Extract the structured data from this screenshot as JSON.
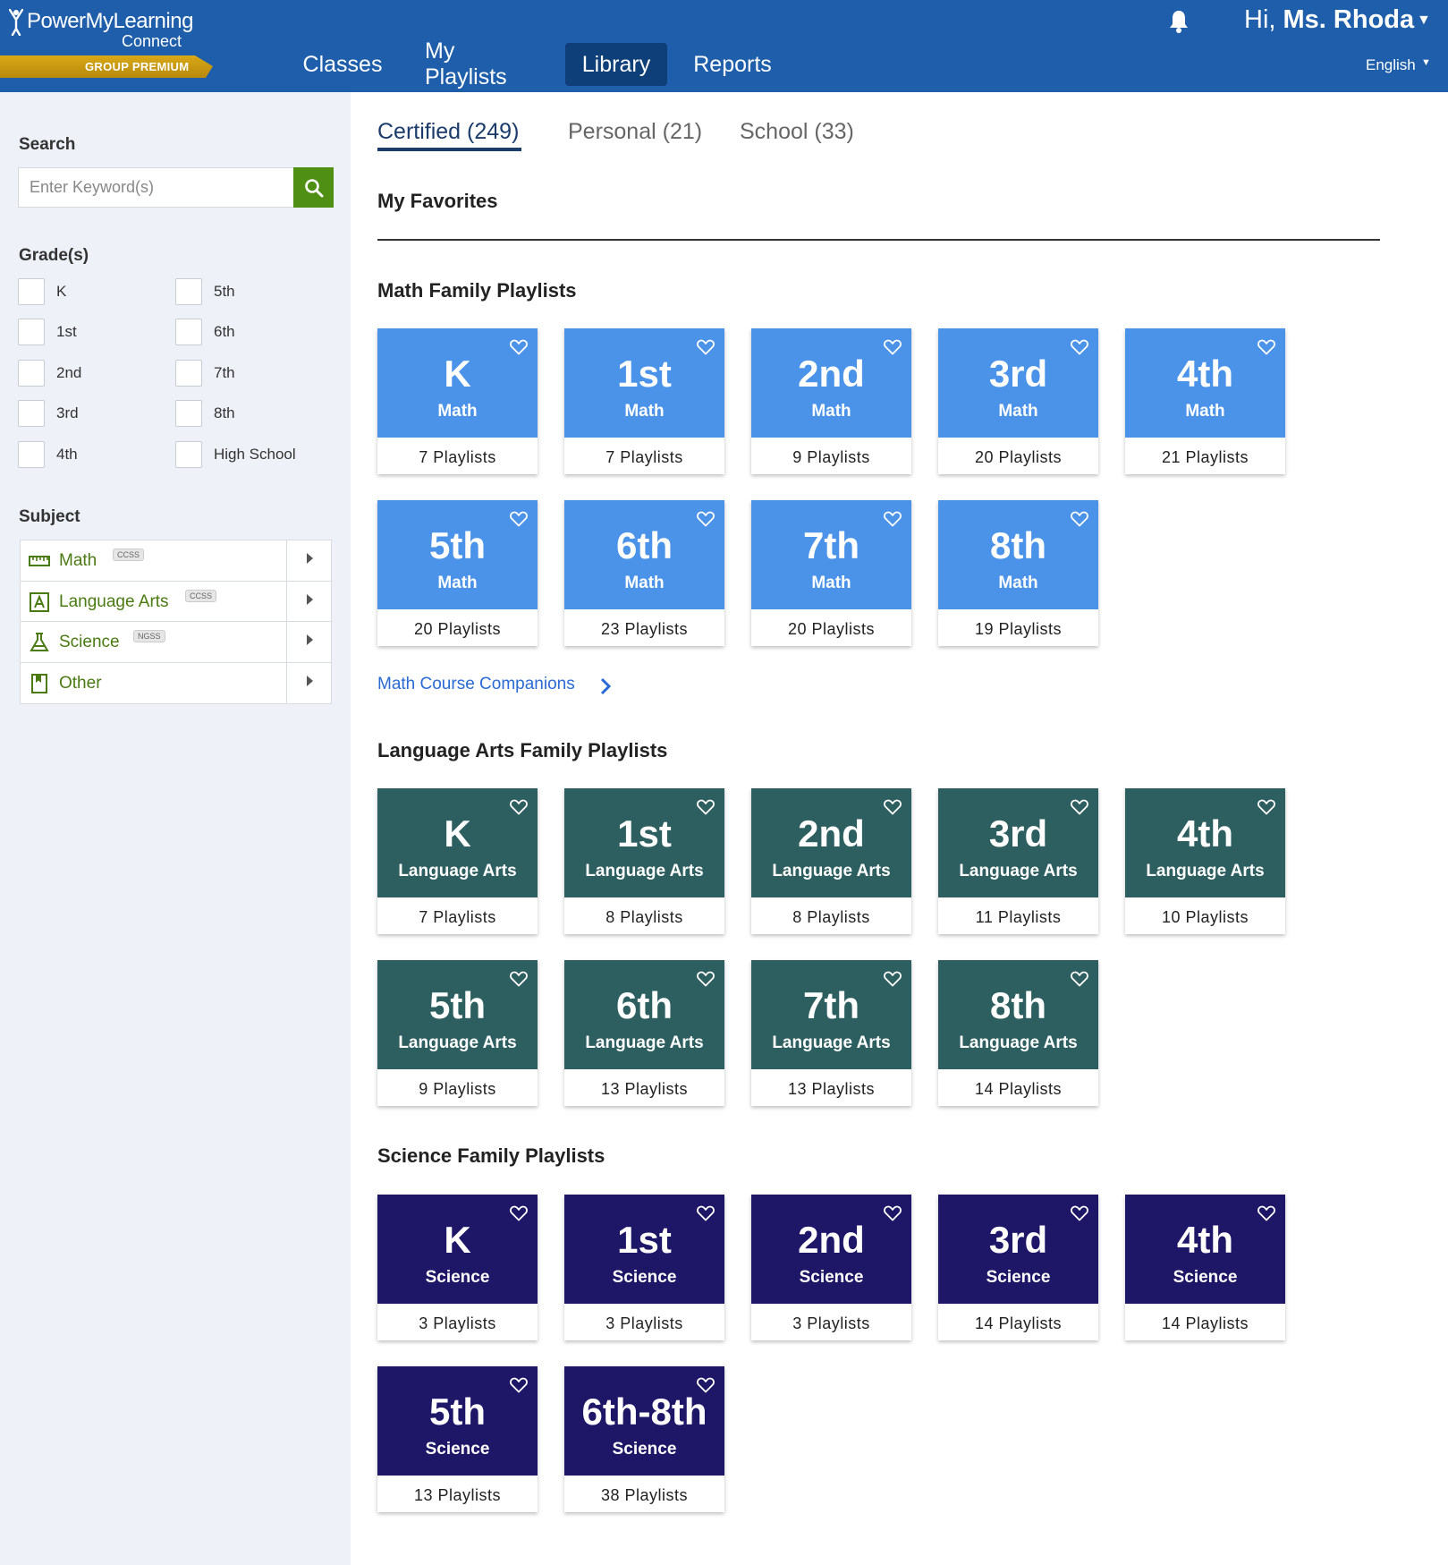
{
  "header": {
    "logo": {
      "name": "PowerMyLearning",
      "sub": "Connect",
      "tier": "GROUP PREMIUM"
    },
    "nav": [
      "Classes",
      "My Playlists",
      "Library",
      "Reports"
    ],
    "active_nav": "Library",
    "greeting_prefix": "Hi,",
    "user_name": "Ms. Rhoda",
    "language": "English"
  },
  "sidebar": {
    "search_label": "Search",
    "search_placeholder": "Enter Keyword(s)",
    "grades_label": "Grade(s)",
    "grades": [
      "K",
      "1st",
      "2nd",
      "3rd",
      "4th",
      "5th",
      "6th",
      "7th",
      "8th",
      "High School"
    ],
    "subject_label": "Subject",
    "subjects": [
      {
        "name": "Math",
        "badge": "CCSS",
        "icon": "ruler-icon"
      },
      {
        "name": "Language Arts",
        "badge": "CCSS",
        "icon": "letter-a-icon"
      },
      {
        "name": "Science",
        "badge": "NGSS",
        "icon": "flask-icon"
      },
      {
        "name": "Other",
        "badge": "",
        "icon": "bookmark-icon"
      }
    ]
  },
  "tabs": [
    "Certified (249)",
    "Personal (21)",
    "School (33)"
  ],
  "favorites_title": "My Favorites",
  "sections": [
    {
      "title": "Math Family Playlists",
      "subject": "Math",
      "cards": [
        {
          "grade": "K",
          "count": "7 Playlists"
        },
        {
          "grade": "1st",
          "count": "7 Playlists"
        },
        {
          "grade": "2nd",
          "count": "9 Playlists"
        },
        {
          "grade": "3rd",
          "count": "20 Playlists"
        },
        {
          "grade": "4th",
          "count": "21 Playlists"
        },
        {
          "grade": "5th",
          "count": "20 Playlists"
        },
        {
          "grade": "6th",
          "count": "23 Playlists"
        },
        {
          "grade": "7th",
          "count": "20 Playlists"
        },
        {
          "grade": "8th",
          "count": "19 Playlists"
        }
      ],
      "link": "Math Course Companions"
    },
    {
      "title": "Language Arts Family Playlists",
      "subject": "Language Arts",
      "cards": [
        {
          "grade": "K",
          "count": "7 Playlists"
        },
        {
          "grade": "1st",
          "count": "8 Playlists"
        },
        {
          "grade": "2nd",
          "count": "8 Playlists"
        },
        {
          "grade": "3rd",
          "count": "11 Playlists"
        },
        {
          "grade": "4th",
          "count": "10 Playlists"
        },
        {
          "grade": "5th",
          "count": "9 Playlists"
        },
        {
          "grade": "6th",
          "count": "13 Playlists"
        },
        {
          "grade": "7th",
          "count": "13 Playlists"
        },
        {
          "grade": "8th",
          "count": "14 Playlists"
        }
      ]
    },
    {
      "title": "Science Family Playlists",
      "subject": "Science",
      "cards": [
        {
          "grade": "K",
          "count": "3 Playlists"
        },
        {
          "grade": "1st",
          "count": "3 Playlists"
        },
        {
          "grade": "2nd",
          "count": "3 Playlists"
        },
        {
          "grade": "3rd",
          "count": "14 Playlists"
        },
        {
          "grade": "4th",
          "count": "14 Playlists"
        },
        {
          "grade": "5th",
          "count": "13 Playlists"
        },
        {
          "grade": "6th-8th",
          "count": "38 Playlists"
        }
      ]
    }
  ],
  "colors": {
    "header": "#1e5eab",
    "math": "#4a93e9",
    "language_arts": "#2e5f60",
    "science": "#1e1768",
    "search_button": "#4f8f14"
  }
}
